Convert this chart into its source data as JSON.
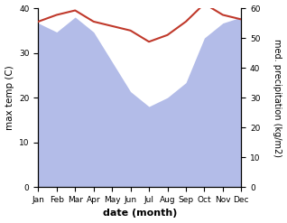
{
  "months": [
    "Jan",
    "Feb",
    "Mar",
    "Apr",
    "May",
    "Jun",
    "Jul",
    "Aug",
    "Sep",
    "Oct",
    "Nov",
    "Dec"
  ],
  "max_temp": [
    37.0,
    38.5,
    39.5,
    37.0,
    36.0,
    35.0,
    32.5,
    34.0,
    37.0,
    41.0,
    38.5,
    37.5
  ],
  "precipitation": [
    55,
    52,
    57,
    52,
    42,
    32,
    27,
    30,
    35,
    50,
    55,
    57
  ],
  "temp_color": "#c0392b",
  "precip_fill_color": "#b3bce8",
  "temp_ylim": [
    0,
    40
  ],
  "precip_ylim": [
    0,
    60
  ],
  "temp_yticks": [
    0,
    10,
    20,
    30,
    40
  ],
  "precip_yticks": [
    0,
    10,
    20,
    30,
    40,
    50,
    60
  ],
  "xlabel": "date (month)",
  "ylabel_left": "max temp (C)",
  "ylabel_right": "med. precipitation (kg/m2)",
  "figsize": [
    3.18,
    2.47
  ],
  "dpi": 100
}
